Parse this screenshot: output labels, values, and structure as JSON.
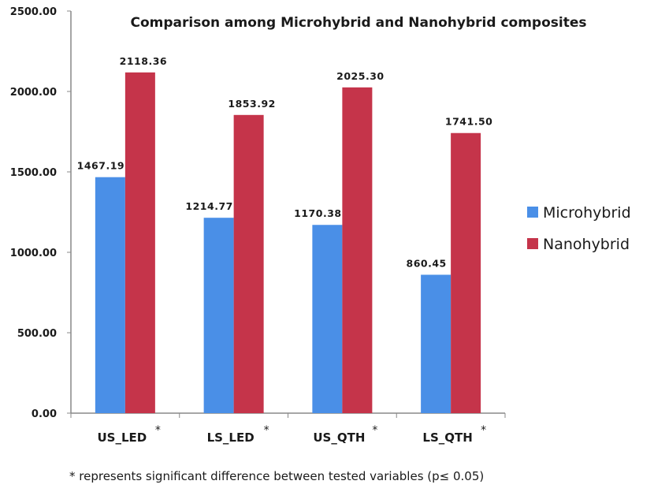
{
  "chart_data": {
    "type": "bar",
    "title": "Comparison among Microhybrid and Nanohybrid composites",
    "categories": [
      "US_LED",
      "LS_LED",
      "US_QTH",
      "LS_QTH"
    ],
    "category_marks": [
      "*",
      "*",
      "*",
      "*"
    ],
    "series": [
      {
        "name": "Microhybrid",
        "color": "#4a8fe7",
        "values": [
          1467.19,
          1214.77,
          1170.38,
          860.45
        ],
        "labels": [
          "1467.19",
          "1214.77",
          "1170.38",
          "860.45"
        ]
      },
      {
        "name": "Nanohybrid",
        "color": "#c5344a",
        "values": [
          2118.36,
          1853.92,
          2025.3,
          1741.5
        ],
        "labels": [
          "2118.36",
          "1853.92",
          "2025.30",
          "1741.50"
        ]
      }
    ],
    "ylim": [
      0,
      2500
    ],
    "yticks": [
      "0.00",
      "500.00",
      "1000.00",
      "1500.00",
      "2000.00",
      "2500.00"
    ],
    "grid": false,
    "legend": "right",
    "footnote": "* represents significant difference between tested variables (p≤ 0.05)"
  }
}
